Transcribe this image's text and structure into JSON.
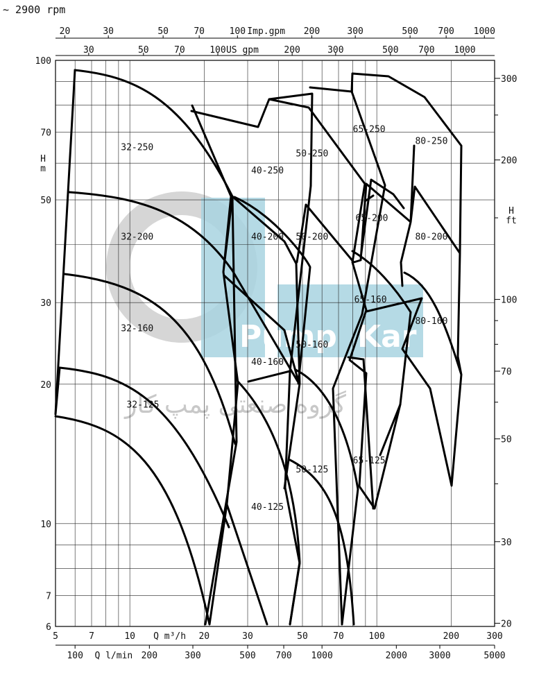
{
  "title": "~ 2900 rpm",
  "colors": {
    "watermark_gray": "#d4d4d4",
    "watermark_blue": "#a8d4e0",
    "curve": "#000000"
  },
  "watermark": {
    "brand_left": "Pump",
    "brand_right": "Kar",
    "persian": "گروه صنعتی پمپ کار"
  },
  "chart_data": {
    "type": "line",
    "scale": "log-log",
    "xlim": [
      5,
      300
    ],
    "ylim": [
      6,
      100
    ],
    "y_right_ticks_ft": [
      "20",
      "30",
      "50",
      "70",
      "100",
      "200",
      "300"
    ],
    "axes": {
      "bottom": {
        "unit_label": "Q m³/h",
        "ticks": [
          "5",
          "7",
          "10",
          "20",
          "30",
          "50",
          "70",
          "100",
          "200",
          "300"
        ]
      },
      "bottom2": {
        "unit_label": "Q l/min",
        "ticks": [
          "100",
          "200",
          "300",
          "500",
          "700",
          "1000",
          "2000",
          "3000",
          "5000"
        ]
      },
      "top": {
        "unit_label": "Imp.gpm",
        "ticks": [
          "20",
          "30",
          "50",
          "70",
          "100",
          "200",
          "300",
          "500",
          "700",
          "1000"
        ]
      },
      "top2": {
        "unit_label": "US gpm",
        "ticks": [
          "30",
          "50",
          "70",
          "100",
          "200",
          "300",
          "500",
          "700",
          "1000"
        ]
      },
      "left": {
        "unit_label_1": "H",
        "unit_label_2": "m",
        "ticks": [
          "6",
          "7",
          "10",
          "20",
          "30",
          "50",
          "70",
          "100"
        ]
      },
      "right": {
        "unit_label_1": "H",
        "unit_label_2": "ft"
      }
    },
    "series": [
      {
        "name": "32-250",
        "label_at": [
          9.2,
          64
        ],
        "points": [
          [
            5.9,
            97
          ],
          [
            10,
            91
          ],
          [
            15,
            78
          ],
          [
            22,
            58
          ],
          [
            25,
            52
          ],
          [
            29,
            46
          ],
          [
            31,
            42
          ],
          [
            35,
            35
          ],
          [
            41,
            29
          ],
          [
            47,
            24
          ],
          [
            54,
            20
          ],
          [
            60,
            18
          ],
          [
            63,
            14.5
          ],
          [
            58,
            14
          ],
          [
            54,
            13
          ],
          [
            50,
            12.4
          ],
          [
            45,
            11.2
          ],
          [
            42,
            10.6
          ],
          [
            38,
            9.5
          ],
          [
            34,
            8.9
          ],
          [
            30,
            8.2
          ],
          [
            25,
            7.6
          ],
          [
            21,
            7.1
          ],
          [
            17.5,
            6.8
          ],
          [
            13,
            6.5
          ],
          [
            9.5,
            6.3
          ],
          [
            7,
            6.2
          ],
          [
            5.6,
            6.1
          ],
          [
            5.3,
            6.0
          ],
          [
            5,
            15.8
          ],
          [
            5.9,
            97
          ]
        ]
      },
      {
        "name": "40-250",
        "label_at": [
          31,
          57
        ],
        "points": [
          [
            21,
            82
          ],
          [
            28,
            77
          ],
          [
            40,
            66
          ],
          [
            49,
            55
          ],
          [
            51,
            52
          ],
          [
            43,
            46
          ],
          [
            35,
            42
          ],
          [
            28,
            39
          ],
          [
            24,
            37
          ]
        ]
      },
      {
        "name": "50-250",
        "label_at": [
          47,
          62
        ],
        "points": [
          [
            41,
            72
          ],
          [
            50,
            78
          ],
          [
            70,
            72
          ],
          [
            88,
            60
          ],
          [
            97,
            53
          ],
          [
            90,
            49
          ],
          [
            80,
            45
          ],
          [
            70,
            41
          ],
          [
            58,
            38.5
          ]
        ]
      },
      {
        "name": "65-250",
        "label_at": [
          80,
          70
        ],
        "points": [
          [
            54,
            83
          ],
          [
            70,
            82
          ],
          [
            100,
            72
          ],
          [
            122,
            57
          ],
          [
            125,
            55
          ],
          [
            112,
            53
          ],
          [
            100,
            47
          ],
          [
            88,
            42
          ],
          [
            80,
            40
          ]
        ]
      },
      {
        "name": "80-250",
        "label_at": [
          143,
          66
        ],
        "points": [
          [
            81,
            88
          ],
          [
            100,
            86
          ],
          [
            140,
            76
          ],
          [
            188,
            65
          ],
          [
            195,
            62
          ],
          [
            180,
            57
          ],
          [
            160,
            52
          ],
          [
            148,
            47
          ]
        ]
      },
      {
        "name": "32-200",
        "label_at": [
          9.2,
          41
        ]
      },
      {
        "name": "40-200",
        "label_at": [
          31,
          41
        ]
      },
      {
        "name": "50-200",
        "label_at": [
          47,
          41
        ]
      },
      {
        "name": "65-200",
        "label_at": [
          82,
          45
        ]
      },
      {
        "name": "80-200",
        "label_at": [
          143,
          41
        ]
      },
      {
        "name": "32-160",
        "label_at": [
          9.2,
          26
        ]
      },
      {
        "name": "40-160",
        "label_at": [
          31,
          22
        ]
      },
      {
        "name": "50-160",
        "label_at": [
          47,
          24
        ]
      },
      {
        "name": "65-160",
        "label_at": [
          81,
          30
        ]
      },
      {
        "name": "80-160",
        "label_at": [
          143,
          27
        ]
      },
      {
        "name": "32-125",
        "label_at": [
          9.7,
          17.8
        ]
      },
      {
        "name": "40-125",
        "label_at": [
          31,
          10.7
        ]
      },
      {
        "name": "50-125",
        "label_at": [
          47,
          12.9
        ]
      },
      {
        "name": "65-125",
        "label_at": [
          80,
          13.5
        ]
      }
    ]
  }
}
